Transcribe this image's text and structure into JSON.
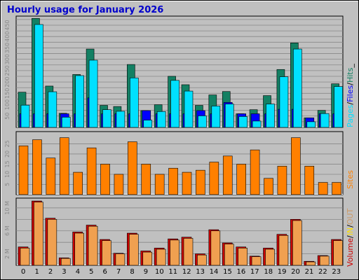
{
  "title": "Hourly usage for January 2026",
  "colors": {
    "background": "#c0c0c0",
    "plot": "#c0c0c0",
    "grid": "#888888",
    "title": "#0000cc",
    "hits": "#138063",
    "files": "#0000ff",
    "pages": "#00e0ff",
    "sites": "#ff8000",
    "volume": "#cc0000",
    "in": "#ffe000",
    "out": "#f0a050",
    "out_label": "#cc9966",
    "sites_label": "#ff8000"
  },
  "legend": {
    "pages": "Pages",
    "files": "Files",
    "hits": "Hits",
    "sep1": "/",
    "sep2": "/",
    "sep3": "_",
    "sites": "Sites",
    "volume": "Volume",
    "in": "IN",
    "out": "OUT",
    "sep4": "/",
    "sep5": "/"
  },
  "chart_data": [
    {
      "type": "bar",
      "title": "Hourly usage for January 2026",
      "categories": [
        "0",
        "1",
        "2",
        "3",
        "4",
        "5",
        "6",
        "7",
        "8",
        "9",
        "10",
        "11",
        "12",
        "13",
        "14",
        "15",
        "16",
        "17",
        "18",
        "19",
        "20",
        "21",
        "22",
        "23"
      ],
      "y_ticks": [
        "50",
        "100",
        "150",
        "200",
        "250",
        "300",
        "350",
        "400",
        "450"
      ],
      "ylim": [
        0,
        490
      ],
      "series": [
        {
          "name": "Hits",
          "values": [
            155,
            480,
            182,
            62,
            233,
            345,
            97,
            92,
            277,
            74,
            100,
            225,
            188,
            97,
            143,
            158,
            60,
            78,
            140,
            255,
            372,
            42,
            75,
            192
          ]
        },
        {
          "name": "Files",
          "values": [
            60,
            60,
            60,
            60,
            60,
            130,
            60,
            60,
            60,
            74,
            60,
            60,
            60,
            74,
            60,
            110,
            60,
            60,
            60,
            80,
            80,
            42,
            60,
            60
          ]
        },
        {
          "name": "Pages",
          "values": [
            98,
            453,
            157,
            45,
            228,
            296,
            78,
            71,
            218,
            32,
            70,
            207,
            160,
            51,
            94,
            103,
            48,
            28,
            103,
            223,
            345,
            25,
            61,
            180
          ]
        }
      ]
    },
    {
      "type": "bar",
      "categories": [
        "0",
        "1",
        "2",
        "3",
        "4",
        "5",
        "6",
        "7",
        "8",
        "9",
        "10",
        "11",
        "12",
        "13",
        "14",
        "15",
        "16",
        "17",
        "18",
        "19",
        "20",
        "21",
        "22",
        "23"
      ],
      "y_ticks": [
        "5",
        "10",
        "15",
        "20",
        "25"
      ],
      "ylim": [
        0,
        31
      ],
      "series": [
        {
          "name": "Sites",
          "values": [
            24,
            27,
            18,
            28,
            11,
            23,
            15,
            10,
            26,
            15,
            10,
            13,
            11,
            12,
            16,
            19,
            15,
            22,
            8,
            14,
            28,
            14,
            6,
            6
          ]
        }
      ]
    },
    {
      "type": "bar",
      "categories": [
        "0",
        "1",
        "2",
        "3",
        "4",
        "5",
        "6",
        "7",
        "8",
        "9",
        "10",
        "11",
        "12",
        "13",
        "14",
        "15",
        "16",
        "17",
        "18",
        "19",
        "20",
        "21",
        "22",
        "23"
      ],
      "y_ticks": [
        "2 M",
        "6 M",
        "10 M"
      ],
      "ylim": [
        0,
        11.7
      ],
      "series": [
        {
          "name": "Volume",
          "values": [
            3.2,
            11.2,
            8.2,
            1.3,
            5.8,
            7.0,
            4.5,
            2.1,
            5.6,
            2.5,
            3.0,
            4.6,
            4.9,
            2.0,
            6.2,
            3.9,
            3.2,
            1.6,
            3.0,
            5.4,
            8.0,
            0.7,
            1.7,
            4.5
          ]
        },
        {
          "name": "OUT",
          "values": [
            3.0,
            11.0,
            8.0,
            1.2,
            5.6,
            6.8,
            4.3,
            2.0,
            5.4,
            2.3,
            2.8,
            4.4,
            4.7,
            1.8,
            6.0,
            3.7,
            3.0,
            1.5,
            2.8,
            5.2,
            7.8,
            0.6,
            1.6,
            4.3
          ]
        }
      ]
    }
  ]
}
